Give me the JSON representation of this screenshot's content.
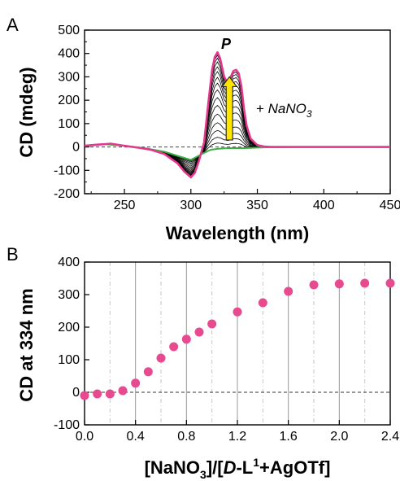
{
  "chart_data": [
    {
      "panel": "A",
      "type": "line",
      "xlabel": "Wavelength (nm)",
      "ylabel": "CD (mdeg)",
      "xlim": [
        220,
        450
      ],
      "ylim": [
        -200,
        500
      ],
      "xticks": [
        250,
        300,
        350,
        400,
        450
      ],
      "yticks": [
        -200,
        -100,
        0,
        100,
        200,
        300,
        400,
        500
      ],
      "annotations": {
        "p_label": "P",
        "reagent_plus": "+ ",
        "reagent_name": "NaNO",
        "reagent_sub": "3"
      },
      "colors": {
        "initial": "#3cb043",
        "final": "#e2388d",
        "intermediate": "#000000",
        "arrow": "#ffe600"
      },
      "series": [
        {
          "role": "initial",
          "x": [
            220,
            235,
            250,
            265,
            280,
            290,
            300,
            305,
            310,
            315,
            320,
            325,
            330,
            335,
            340,
            345,
            350,
            360,
            380,
            400,
            420,
            450
          ],
          "values": [
            5,
            12,
            5,
            -5,
            -20,
            -38,
            -55,
            -40,
            -25,
            -12,
            -8,
            -6,
            -5,
            -5,
            -5,
            -4,
            -3,
            -1,
            0,
            0,
            0,
            0
          ]
        },
        {
          "role": "final",
          "x": [
            220,
            230,
            240,
            250,
            260,
            270,
            280,
            290,
            295,
            300,
            303,
            306,
            310,
            313,
            316,
            318,
            320,
            322,
            325,
            328,
            330,
            332,
            334,
            336,
            338,
            340,
            342,
            345,
            350,
            355,
            360,
            370,
            380,
            400,
            420,
            450
          ],
          "values": [
            5,
            10,
            14,
            5,
            -3,
            -12,
            -30,
            -70,
            -105,
            -130,
            -110,
            -60,
            20,
            180,
            330,
            385,
            405,
            380,
            300,
            270,
            300,
            325,
            330,
            315,
            260,
            160,
            90,
            35,
            8,
            2,
            0,
            0,
            0,
            0,
            0,
            0
          ]
        }
      ]
    },
    {
      "panel": "B",
      "type": "scatter",
      "xlabel_parts": [
        "[NaNO",
        "3",
        "]/[",
        "D",
        "-L",
        "1",
        "+AgOTf]"
      ],
      "ylabel": "CD at 334 nm",
      "xlim": [
        0,
        2.4
      ],
      "ylim": [
        -100,
        400
      ],
      "xticks": [
        "0.0",
        "0.4",
        "0.8",
        "1.2",
        "1.6",
        "2.0",
        "2.4"
      ],
      "yticks": [
        -100,
        0,
        100,
        200,
        300,
        400
      ],
      "color": "#e84a8f",
      "x": [
        0.0,
        0.1,
        0.2,
        0.3,
        0.4,
        0.5,
        0.6,
        0.7,
        0.8,
        0.9,
        1.0,
        1.2,
        1.4,
        1.6,
        1.8,
        2.0,
        2.2,
        2.4
      ],
      "values": [
        -10,
        -5,
        -5,
        5,
        28,
        63,
        105,
        140,
        163,
        185,
        210,
        247,
        275,
        310,
        330,
        333,
        335,
        335
      ]
    }
  ]
}
